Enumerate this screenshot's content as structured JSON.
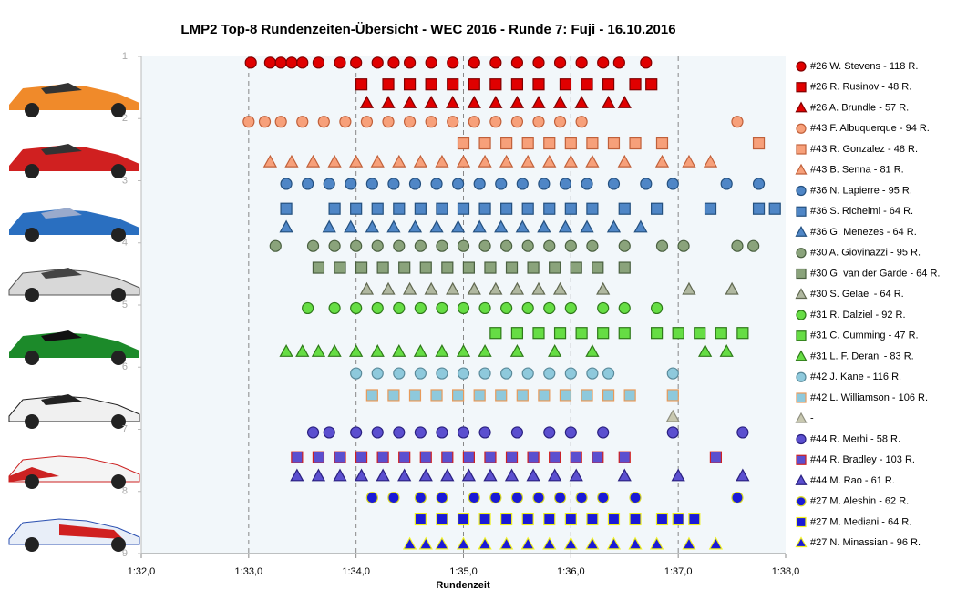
{
  "chart_data": {
    "type": "scatter",
    "title": "LMP2  Top-8 Rundenzeiten-Übersicht  - WEC 2016  - Runde 7: Fuji  - 16.10.2016",
    "xlabel": "Rundenzeit",
    "xlim": [
      92,
      98
    ],
    "xticks": [
      {
        "value": 92,
        "label": "1:32,0"
      },
      {
        "value": 93,
        "label": "1:33,0"
      },
      {
        "value": 94,
        "label": "1:34,0"
      },
      {
        "value": 95,
        "label": "1:35,0"
      },
      {
        "value": 96,
        "label": "1:36,0"
      },
      {
        "value": 97,
        "label": "1:37,0"
      },
      {
        "value": 98,
        "label": "1:38,0"
      }
    ],
    "ylim": [
      1,
      9
    ],
    "yticks": [
      1,
      2,
      3,
      4,
      5,
      6,
      7,
      8,
      9
    ],
    "y_inverted": true,
    "grid": "x",
    "series": [
      {
        "name": "#26 W. Stevens - 118 R.",
        "color": "#e00000",
        "edgecolor": "#800000",
        "marker": "circle",
        "y": 1.1,
        "x": [
          93.02,
          93.2,
          93.3,
          93.4,
          93.5,
          93.65,
          93.85,
          94.0,
          94.2,
          94.35,
          94.5,
          94.7,
          94.9,
          95.1,
          95.3,
          95.5,
          95.7,
          95.9,
          96.1,
          96.3,
          96.45,
          96.7
        ]
      },
      {
        "name": "#26 R. Rusinov - 48 R.",
        "color": "#e00000",
        "edgecolor": "#800000",
        "marker": "square",
        "y": 1.45,
        "x": [
          94.05,
          94.3,
          94.5,
          94.7,
          94.9,
          95.1,
          95.3,
          95.5,
          95.7,
          95.95,
          96.15,
          96.35,
          96.6,
          96.75
        ]
      },
      {
        "name": "#26 A. Brundle - 57 R.",
        "color": "#e00000",
        "edgecolor": "#800000",
        "marker": "triangle",
        "y": 1.75,
        "x": [
          94.1,
          94.3,
          94.5,
          94.7,
          94.9,
          95.1,
          95.3,
          95.5,
          95.7,
          95.9,
          96.1,
          96.35,
          96.5
        ]
      },
      {
        "name": "#43 F. Albuquerque - 94 R.",
        "color": "#f7a07a",
        "edgecolor": "#c0603a",
        "marker": "circle",
        "y": 2.05,
        "x": [
          93.0,
          93.15,
          93.3,
          93.5,
          93.7,
          93.9,
          94.1,
          94.3,
          94.5,
          94.7,
          94.9,
          95.1,
          95.3,
          95.5,
          95.7,
          95.9,
          96.1,
          97.55
        ]
      },
      {
        "name": "#43 R. Gonzalez - 48 R.",
        "color": "#f7a07a",
        "edgecolor": "#c0603a",
        "marker": "square",
        "y": 2.4,
        "x": [
          95.0,
          95.2,
          95.4,
          95.6,
          95.8,
          96.0,
          96.2,
          96.4,
          96.6,
          96.85,
          97.75
        ]
      },
      {
        "name": "#43 B. Senna - 81 R.",
        "color": "#f7a07a",
        "edgecolor": "#c0603a",
        "marker": "triangle",
        "y": 2.7,
        "x": [
          93.2,
          93.4,
          93.6,
          93.8,
          94.0,
          94.2,
          94.4,
          94.6,
          94.8,
          95.0,
          95.2,
          95.4,
          95.6,
          95.8,
          96.0,
          96.2,
          96.5,
          96.85,
          97.1,
          97.3
        ]
      },
      {
        "name": "#36 N. Lapierre - 95 R.",
        "color": "#4f86c6",
        "edgecolor": "#24507f",
        "marker": "circle",
        "y": 3.05,
        "x": [
          93.35,
          93.55,
          93.75,
          93.95,
          94.15,
          94.35,
          94.55,
          94.75,
          94.95,
          95.15,
          95.35,
          95.55,
          95.75,
          95.95,
          96.15,
          96.4,
          96.7,
          96.95,
          97.45,
          97.75
        ]
      },
      {
        "name": "#36 S. Richelmi - 64 R.",
        "color": "#4f86c6",
        "edgecolor": "#24507f",
        "marker": "square",
        "y": 3.45,
        "x": [
          93.35,
          93.8,
          94.0,
          94.2,
          94.4,
          94.6,
          94.8,
          95.0,
          95.2,
          95.4,
          95.6,
          95.8,
          96.0,
          96.2,
          96.5,
          96.8,
          97.3,
          97.75,
          97.9
        ]
      },
      {
        "name": "#36 G. Menezes - 64 R.",
        "color": "#4f86c6",
        "edgecolor": "#24507f",
        "marker": "triangle",
        "y": 3.75,
        "x": [
          93.35,
          93.75,
          93.95,
          94.15,
          94.35,
          94.55,
          94.75,
          94.95,
          95.15,
          95.35,
          95.55,
          95.75,
          95.95,
          96.15,
          96.4,
          96.65
        ]
      },
      {
        "name": "#30 A. Giovinazzi - 95 R.",
        "color": "#8aa37b",
        "edgecolor": "#4a6040",
        "marker": "circle",
        "y": 4.05,
        "x": [
          93.25,
          93.6,
          93.8,
          94.0,
          94.2,
          94.4,
          94.6,
          94.8,
          95.0,
          95.2,
          95.4,
          95.6,
          95.8,
          96.0,
          96.2,
          96.5,
          96.85,
          97.05,
          97.55,
          97.7
        ]
      },
      {
        "name": "#30 G. van der Garde - 64 R.",
        "color": "#8aa37b",
        "edgecolor": "#4a6040",
        "marker": "square",
        "y": 4.4,
        "x": [
          93.65,
          93.85,
          94.05,
          94.25,
          94.45,
          94.65,
          94.85,
          95.05,
          95.25,
          95.45,
          95.65,
          95.85,
          96.05,
          96.25,
          96.5
        ]
      },
      {
        "name": "#30 S. Gelael - 64 R.",
        "color": "#b0b8a0",
        "edgecolor": "#606850",
        "marker": "triangle",
        "y": 4.75,
        "x": [
          94.1,
          94.3,
          94.5,
          94.7,
          94.9,
          95.1,
          95.3,
          95.5,
          95.7,
          95.9,
          96.3,
          97.1,
          97.5
        ]
      },
      {
        "name": "#31 R. Dalziel - 92 R.",
        "color": "#66dd44",
        "edgecolor": "#2f7a1a",
        "marker": "circle",
        "y": 5.05,
        "x": [
          93.55,
          93.8,
          94.0,
          94.2,
          94.4,
          94.6,
          94.8,
          95.0,
          95.2,
          95.4,
          95.6,
          95.8,
          96.0,
          96.3,
          96.5,
          96.8
        ]
      },
      {
        "name": "#31 C. Cumming - 47 R.",
        "color": "#66dd44",
        "edgecolor": "#2f7a1a",
        "marker": "square",
        "y": 5.45,
        "x": [
          95.3,
          95.5,
          95.7,
          95.9,
          96.1,
          96.3,
          96.5,
          96.8,
          97.0,
          97.2,
          97.4,
          97.6
        ]
      },
      {
        "name": "#31 L. F. Derani - 83 R.",
        "color": "#66dd44",
        "edgecolor": "#2f7a1a",
        "marker": "triangle",
        "y": 5.75,
        "x": [
          93.35,
          93.5,
          93.65,
          93.8,
          94.0,
          94.2,
          94.4,
          94.6,
          94.8,
          95.0,
          95.2,
          95.5,
          95.85,
          96.2,
          97.25,
          97.45
        ]
      },
      {
        "name": "#42 J. Kane - 116 R.",
        "color": "#8ec9dc",
        "edgecolor": "#5a8a9a",
        "marker": "circle",
        "y": 6.1,
        "x": [
          94.0,
          94.2,
          94.4,
          94.6,
          94.8,
          95.0,
          95.2,
          95.4,
          95.6,
          95.8,
          96.0,
          96.2,
          96.35,
          96.95
        ]
      },
      {
        "name": "#42 L. Williamson - 106 R.",
        "color": "#8ec9dc",
        "edgecolor": "#e89a5a",
        "marker": "square",
        "y": 6.45,
        "x": [
          94.15,
          94.35,
          94.55,
          94.75,
          94.95,
          95.15,
          95.35,
          95.55,
          95.75,
          95.95,
          96.15,
          96.35,
          96.55,
          96.95
        ]
      },
      {
        "name": "-",
        "color": "#c8c8b0",
        "edgecolor": "#909080",
        "marker": "triangle",
        "y": 6.8,
        "x": [
          96.95
        ]
      },
      {
        "name": "#44 R. Merhi - 58 R.",
        "color": "#5b4fcf",
        "edgecolor": "#2a2080",
        "marker": "circle",
        "y": 7.05,
        "x": [
          93.6,
          93.75,
          94.0,
          94.2,
          94.4,
          94.6,
          94.8,
          95.0,
          95.2,
          95.5,
          95.8,
          96.0,
          96.3,
          96.95,
          97.6
        ]
      },
      {
        "name": "#44 R. Bradley - 103 R.",
        "color": "#5b4fcf",
        "edgecolor": "#d02020",
        "marker": "square",
        "y": 7.45,
        "x": [
          93.45,
          93.65,
          93.85,
          94.05,
          94.25,
          94.45,
          94.65,
          94.85,
          95.05,
          95.25,
          95.45,
          95.65,
          95.85,
          96.05,
          96.25,
          96.5,
          97.35
        ]
      },
      {
        "name": "#44 M. Rao - 61 R.",
        "color": "#5b4fcf",
        "edgecolor": "#2a2080",
        "marker": "triangle",
        "y": 7.75,
        "x": [
          93.45,
          93.65,
          93.85,
          94.05,
          94.25,
          94.45,
          94.65,
          94.85,
          95.05,
          95.25,
          95.45,
          95.65,
          95.85,
          96.05,
          96.5,
          97.0,
          97.6
        ]
      },
      {
        "name": "#27 M. Aleshin - 62 R.",
        "color": "#1a1ad6",
        "edgecolor": "#d8d820",
        "marker": "circle",
        "y": 8.1,
        "x": [
          94.15,
          94.35,
          94.6,
          94.8,
          95.1,
          95.3,
          95.5,
          95.7,
          95.9,
          96.1,
          96.3,
          96.6,
          97.55
        ]
      },
      {
        "name": "#27 M. Mediani - 64 R.",
        "color": "#1a1ad6",
        "edgecolor": "#f0f020",
        "marker": "square",
        "y": 8.45,
        "x": [
          94.6,
          94.8,
          95.0,
          95.2,
          95.4,
          95.6,
          95.8,
          96.0,
          96.2,
          96.4,
          96.6,
          96.85,
          97.0,
          97.15
        ]
      },
      {
        "name": "#27 N. Minassian - 96 R.",
        "color": "#1a1ad6",
        "edgecolor": "#f0f020",
        "marker": "triangle",
        "y": 8.85,
        "x": [
          94.5,
          94.65,
          94.8,
          95.0,
          95.2,
          95.4,
          95.6,
          95.8,
          96.0,
          96.2,
          96.4,
          96.6,
          96.8,
          97.1,
          97.35
        ]
      }
    ]
  }
}
